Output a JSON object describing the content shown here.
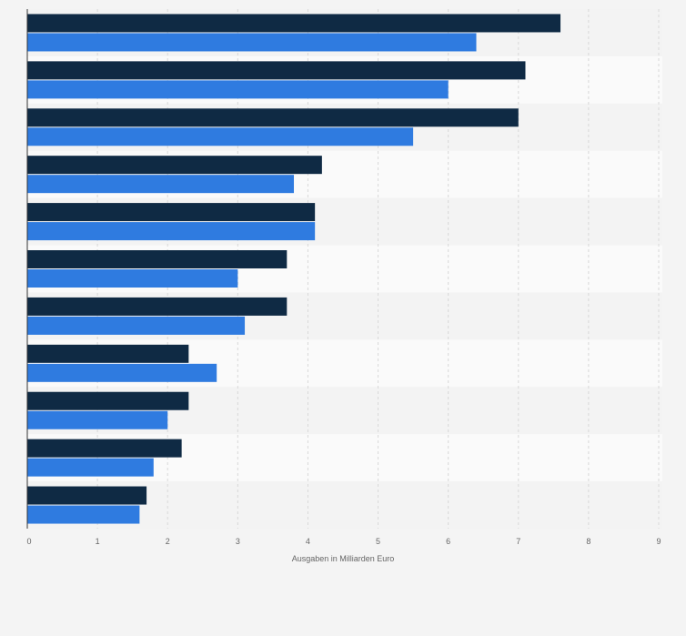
{
  "chart_data": {
    "type": "bar",
    "orientation": "horizontal",
    "xlabel": "Ausgaben in Milliarden Euro",
    "ylabel": "",
    "xlim": [
      0,
      9
    ],
    "xticks": [
      "0",
      "1",
      "2",
      "3",
      "4",
      "5",
      "6",
      "7",
      "8",
      "9"
    ],
    "grid": true,
    "colors": [
      "#0f2a44",
      "#2f7be0"
    ],
    "background": "#f4f4f4",
    "plot_band_colors": [
      "#f3f3f3",
      "#fafafa"
    ],
    "categories": [
      "",
      "",
      "",
      "",
      "",
      "",
      "",
      "",
      "",
      "",
      ""
    ],
    "series": [
      {
        "values": [
          7.6,
          7.1,
          7.0,
          4.2,
          4.1,
          3.7,
          3.7,
          2.3,
          2.3,
          2.2,
          1.7
        ]
      },
      {
        "values": [
          6.4,
          6.0,
          5.5,
          3.8,
          4.1,
          3.0,
          3.1,
          2.7,
          2.0,
          1.8,
          1.6
        ]
      }
    ]
  }
}
